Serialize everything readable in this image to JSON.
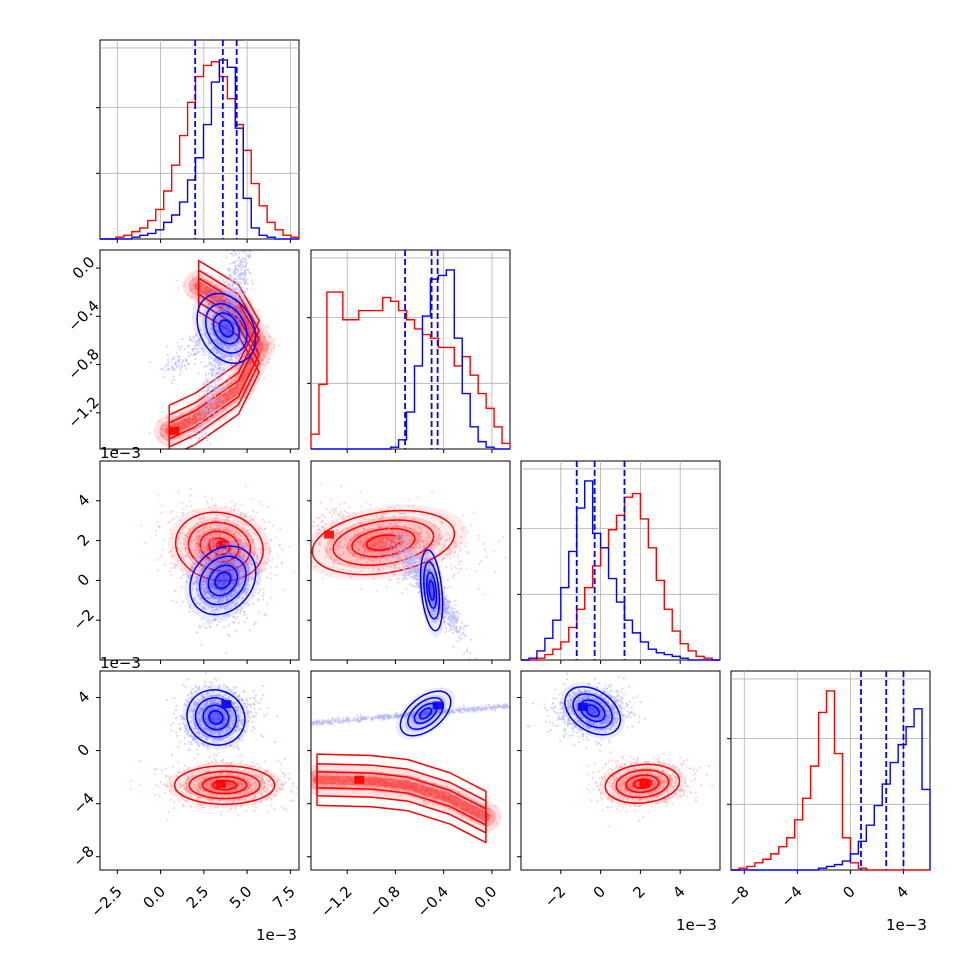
{
  "chart_data": {
    "type": "corner",
    "series": [
      {
        "color": "#0000ff"
      },
      {
        "color": "#ff0000"
      }
    ],
    "quantile_color": "#0000ff",
    "grid": true,
    "params": [
      {
        "index": 0,
        "range": [
          -3.5,
          8.0
        ],
        "ticks": [
          -2.5,
          0.0,
          2.5,
          5.0,
          7.5
        ],
        "tick_labels": [
          "−2.5",
          "0.0",
          "2.5",
          "5.0",
          "7.5"
        ],
        "offset_label": "1e−3"
      },
      {
        "index": 1,
        "range": [
          -1.5,
          0.15
        ],
        "ticks": [
          -1.2,
          -0.8,
          -0.4,
          0.0
        ],
        "tick_labels": [
          "−1.2",
          "−0.8",
          "−0.4",
          "0.0"
        ],
        "offset_label": "1e−3"
      },
      {
        "index": 2,
        "range": [
          -4.0,
          6.0
        ],
        "ticks": [
          -2,
          0,
          2,
          4
        ],
        "tick_labels": [
          "−2",
          "0",
          "2",
          "4"
        ],
        "offset_label": "1e−3"
      },
      {
        "index": 3,
        "range": [
          -9.0,
          6.0
        ],
        "ticks": [
          -8,
          -4,
          0,
          4
        ],
        "tick_labels": [
          "−8",
          "−4",
          "0",
          "4"
        ],
        "offset_label": "1e−3"
      }
    ],
    "histograms": [
      {
        "param": 0,
        "quantiles": [
          2.0,
          3.6,
          4.4
        ],
        "blue": {
          "edges_range": [
            -3.5,
            8.0
          ],
          "values": [
            0,
            0,
            0,
            0,
            1,
            2,
            3,
            5,
            9,
            13,
            20,
            32,
            44,
            62,
            85,
            97,
            93,
            60,
            22,
            6,
            2,
            1,
            0,
            0,
            0
          ]
        },
        "red": {
          "edges_range": [
            -3.5,
            8.0
          ],
          "values": [
            0,
            0,
            1,
            2,
            4,
            6,
            10,
            16,
            26,
            40,
            56,
            74,
            88,
            94,
            96,
            88,
            76,
            62,
            48,
            30,
            18,
            9,
            5,
            2,
            1
          ]
        }
      },
      {
        "param": 1,
        "quantiles": [
          -0.72,
          -0.5,
          -0.45
        ],
        "blue": {
          "edges_range": [
            -1.5,
            0.15
          ],
          "values": [
            0,
            0,
            0,
            0,
            0,
            0,
            0,
            0,
            0,
            0,
            1,
            5,
            20,
            45,
            72,
            92,
            94,
            97,
            60,
            30,
            12,
            4,
            1,
            0,
            0
          ]
        },
        "red": {
          "edges_range": [
            -1.5,
            0.15
          ],
          "values": [
            8,
            35,
            85,
            85,
            70,
            70,
            75,
            75,
            75,
            82,
            80,
            75,
            70,
            65,
            62,
            60,
            55,
            55,
            45,
            50,
            40,
            30,
            22,
            12,
            3
          ]
        }
      },
      {
        "param": 2,
        "quantiles": [
          -1.2,
          -0.3,
          1.2
        ],
        "blue": {
          "edges_range": [
            -4.0,
            6.0
          ],
          "values": [
            0,
            1,
            5,
            12,
            22,
            40,
            60,
            84,
            99,
            70,
            62,
            45,
            32,
            22,
            15,
            10,
            6,
            4,
            3,
            2,
            1,
            0,
            0,
            0,
            0
          ]
        },
        "red": {
          "edges_range": [
            -4.0,
            6.0
          ],
          "values": [
            0,
            0,
            1,
            3,
            6,
            10,
            18,
            28,
            40,
            52,
            62,
            72,
            80,
            90,
            92,
            78,
            62,
            44,
            28,
            16,
            9,
            5,
            2,
            1,
            0
          ]
        }
      },
      {
        "param": 3,
        "quantiles": [
          0.8,
          2.7,
          4.0
        ],
        "blue": {
          "edges_range": [
            -9.0,
            6.0
          ],
          "values": [
            0,
            0,
            0,
            0,
            0,
            0,
            0,
            0,
            0,
            0,
            0,
            1,
            2,
            3,
            5,
            9,
            16,
            25,
            36,
            48,
            60,
            70,
            80,
            90,
            45
          ]
        },
        "red": {
          "edges_range": [
            -9.0,
            6.0
          ],
          "values": [
            0,
            1,
            2,
            4,
            6,
            9,
            13,
            18,
            28,
            40,
            58,
            88,
            100,
            65,
            18,
            4,
            1,
            0,
            0,
            0,
            0,
            0,
            0,
            0,
            0
          ]
        }
      }
    ],
    "scatters": [
      {
        "x": 0,
        "y": 1,
        "blue": {
          "center": [
            3.8,
            -0.5
          ],
          "sd": [
            0.9,
            0.18
          ],
          "rot": 0.5,
          "tail": {
            "to": [
              0.5,
              -0.85
            ],
            "sd": [
              0.6,
              0.06
            ]
          }
        },
        "red": {
          "arc": [
            [
              2.2,
              -0.15
            ],
            [
              4.5,
              -0.35
            ],
            [
              5.7,
              -0.65
            ],
            [
              4.5,
              -1.0
            ],
            [
              2.0,
              -1.25
            ],
            [
              0.5,
              -1.35
            ]
          ],
          "sd": [
            0.9,
            0.12
          ],
          "peak": [
            0.8,
            -1.35
          ]
        }
      },
      {
        "x": 0,
        "y": 2,
        "blue": {
          "center": [
            3.6,
            0.0
          ],
          "sd": [
            1.0,
            1.1
          ],
          "rot": -0.7
        },
        "red": {
          "center": [
            3.4,
            1.7
          ],
          "sd": [
            1.5,
            1.0
          ],
          "rot": -0.2,
          "peak": [
            3.5,
            1.8
          ]
        }
      },
      {
        "x": 1,
        "y": 2,
        "blue": {
          "center": [
            -0.5,
            -0.5
          ],
          "sd": [
            0.05,
            1.2
          ],
          "rot": 0.1,
          "tail": {
            "to": [
              -0.8,
              1.5
            ],
            "sd": [
              0.08,
              0.4
            ]
          }
        },
        "red": {
          "center": [
            -0.9,
            1.9
          ],
          "sd": [
            0.35,
            0.9
          ],
          "rot": 0.15,
          "peak": [
            -1.35,
            2.3
          ]
        }
      },
      {
        "x": 0,
        "y": 3,
        "blue": {
          "center": [
            3.2,
            2.5
          ],
          "sd": [
            1.0,
            1.2
          ],
          "rot": -0.5,
          "peak": [
            3.8,
            3.5
          ]
        },
        "red": {
          "center": [
            3.7,
            -2.6
          ],
          "sd": [
            1.7,
            0.85
          ],
          "rot": 0.0,
          "peak": [
            3.5,
            -2.5
          ]
        }
      },
      {
        "x": 1,
        "y": 3,
        "blue": {
          "center": [
            -0.55,
            2.8
          ],
          "sd": [
            0.08,
            1.3
          ],
          "rot": -0.9,
          "peak": [
            -0.45,
            3.4
          ]
        },
        "red": {
          "arc": [
            [
              -1.45,
              -2.2
            ],
            [
              -1.0,
              -2.3
            ],
            [
              -0.7,
              -2.6
            ],
            [
              -0.35,
              -3.6
            ],
            [
              -0.05,
              -5.0
            ]
          ],
          "sd": [
            0.12,
            0.55
          ],
          "peak": [
            -1.1,
            -2.2
          ]
        }
      },
      {
        "x": 2,
        "y": 3,
        "blue": {
          "center": [
            -0.4,
            3.0
          ],
          "sd": [
            0.9,
            0.9
          ],
          "rot": -0.6,
          "peak": [
            -0.9,
            3.3
          ]
        },
        "red": {
          "center": [
            2.1,
            -2.5
          ],
          "sd": [
            1.1,
            0.85
          ],
          "rot": 0.1,
          "peak": [
            2.2,
            -2.5
          ]
        }
      }
    ]
  }
}
